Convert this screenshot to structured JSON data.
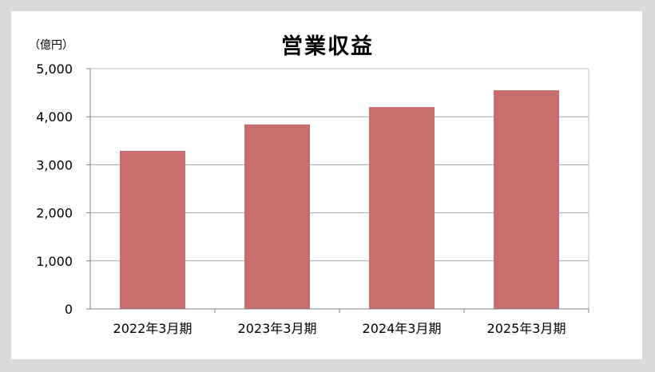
{
  "chart_data": {
    "type": "bar",
    "title": "営業収益",
    "unit_label": "（億円）",
    "categories": [
      "2022年3月期",
      "2023年3月期",
      "2024年3月期",
      "2025年3月期"
    ],
    "values": [
      3290,
      3840,
      4200,
      4550
    ],
    "ylim": [
      0,
      5000
    ],
    "yticks": [
      0,
      1000,
      2000,
      3000,
      4000,
      5000
    ],
    "ytick_labels": [
      "0",
      "1,000",
      "2,000",
      "3,000",
      "4,000",
      "5,000"
    ],
    "grid": true,
    "bar_color": "#c86e6e",
    "grid_color": "#a6a6a6"
  }
}
